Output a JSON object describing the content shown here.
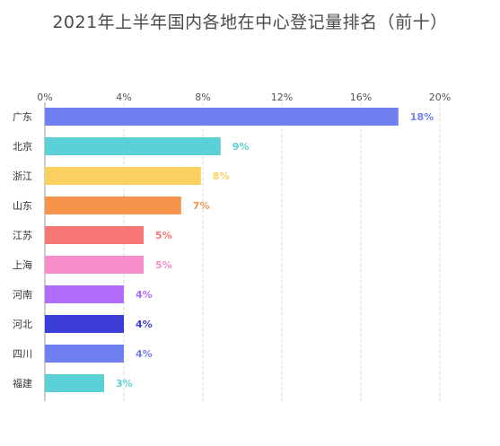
{
  "chart_data": {
    "type": "bar",
    "orientation": "horizontal",
    "title": "2021年上半年国内各地在中心登记量排名（前十）",
    "categories": [
      "广东",
      "北京",
      "浙江",
      "山东",
      "江苏",
      "上海",
      "河南",
      "河北",
      "四川",
      "福建"
    ],
    "values": [
      17.9,
      8.9,
      7.9,
      6.9,
      5.0,
      5.0,
      4.0,
      4.0,
      4.0,
      3.0
    ],
    "value_labels": [
      "18%",
      "9%",
      "8%",
      "7%",
      "5%",
      "5%",
      "4%",
      "4%",
      "4%",
      "3%"
    ],
    "xlim": [
      0,
      20
    ],
    "x_ticks": [
      "0%",
      "4%",
      "8%",
      "12%",
      "16%",
      "20%"
    ],
    "x_axis_position": "top",
    "grid": true,
    "colors": [
      "#6f80f0",
      "#5bd0d6",
      "#fcd060",
      "#f6944c",
      "#f67676",
      "#f68cc8",
      "#b06cfa",
      "#3c3cd6",
      "#6f80f0",
      "#5bd0d6"
    ]
  }
}
